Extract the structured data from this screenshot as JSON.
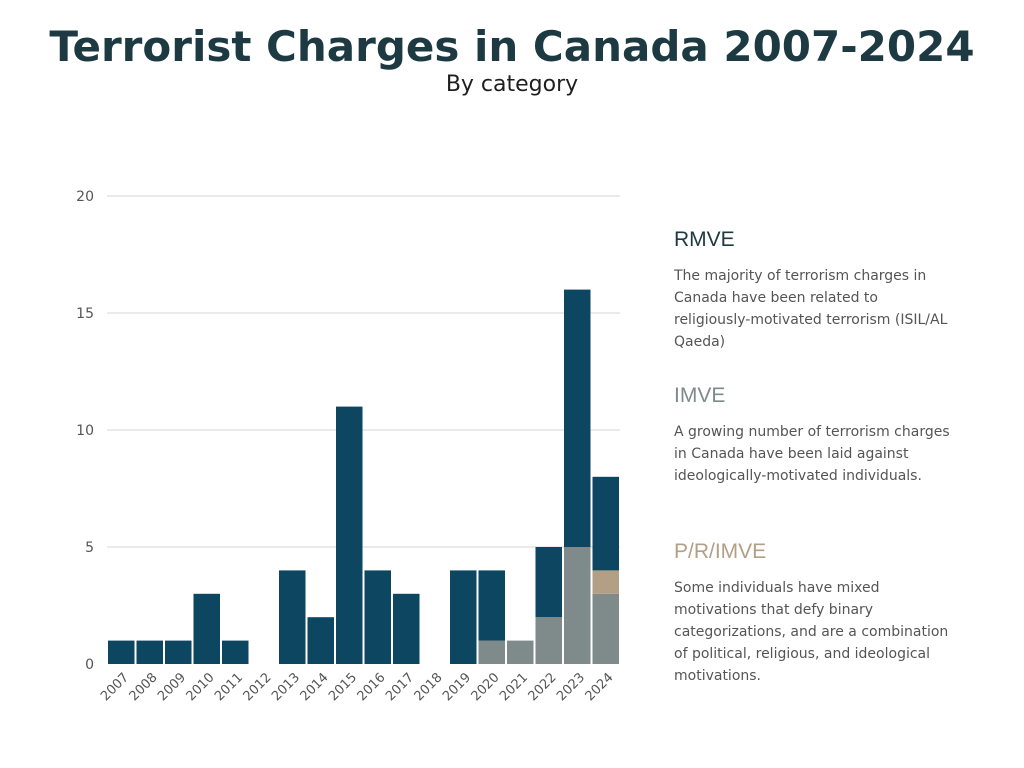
{
  "header": {
    "title": "Terrorist Charges in Canada 2007-2024",
    "subtitle": "By category"
  },
  "colors": {
    "rmve": "#0c4660",
    "imve": "#7f8b8a",
    "prim": "#b39f86",
    "grid": "#d4d4d4"
  },
  "chart_data": {
    "type": "bar",
    "stacked": true,
    "categories": [
      "2007",
      "2008",
      "2009",
      "2010",
      "2011",
      "2012",
      "2013",
      "2014",
      "2015",
      "2016",
      "2017",
      "2018",
      "2019",
      "2020",
      "2021",
      "2022",
      "2023",
      "2024"
    ],
    "series": [
      {
        "name": "IMVE",
        "values": [
          0,
          0,
          0,
          0,
          0,
          0,
          0,
          0,
          0,
          0,
          0,
          0,
          0,
          1,
          1,
          2,
          5,
          3
        ]
      },
      {
        "name": "P/R/IMVE",
        "values": [
          0,
          0,
          0,
          0,
          0,
          0,
          0,
          0,
          0,
          0,
          0,
          0,
          0,
          0,
          0,
          0,
          0,
          1
        ]
      },
      {
        "name": "RMVE",
        "values": [
          1,
          1,
          1,
          3,
          1,
          0,
          4,
          2,
          11,
          4,
          3,
          0,
          4,
          3,
          0,
          3,
          11,
          4
        ]
      }
    ],
    "ylim": [
      0,
      20
    ],
    "yticks": [
      0,
      5,
      10,
      15,
      20
    ],
    "grid": true,
    "title": "",
    "xlabel": "",
    "ylabel": ""
  },
  "legend": {
    "rmve": {
      "heading": "RMVE",
      "text": "The majority of terrorism charges in Canada have been related to religiously-motivated terrorism (ISIL/AL Qaeda)"
    },
    "imve": {
      "heading": "IMVE",
      "text": "A growing number of terrorism charges in Canada have been laid against ideologically-motivated individuals."
    },
    "prim": {
      "heading": "P/R/IMVE",
      "text": "Some individuals have mixed motivations that defy binary categorizations, and are a combination of political, religious, and ideological motivations."
    }
  }
}
